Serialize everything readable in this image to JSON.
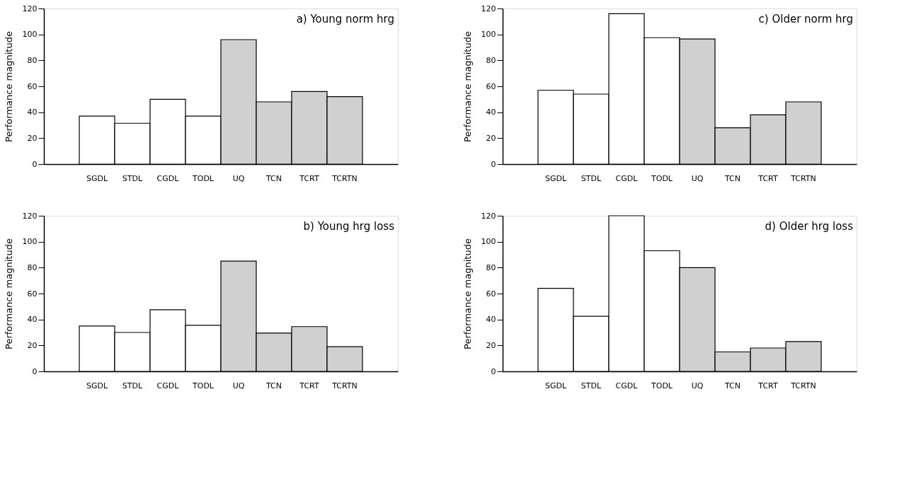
{
  "chart_data": [
    {
      "type": "bar",
      "title": "a) Young norm hrg",
      "ylabel": "Performance magnitude",
      "categories": [
        "SGDL",
        "STDL",
        "CGDL",
        "TODL",
        "UQ",
        "TCN",
        "TCRT",
        "TCRTN"
      ],
      "values": [
        37,
        31.5,
        50,
        37,
        96,
        48,
        56,
        52
      ],
      "colors": [
        "#ffffff",
        "#ffffff",
        "#ffffff",
        "#ffffff",
        "#d0d0d0",
        "#d0d0d0",
        "#d0d0d0",
        "#d0d0d0"
      ],
      "ylim": [
        0,
        120
      ],
      "yticks": [
        0,
        20,
        40,
        60,
        80,
        100,
        120
      ],
      "grid": false
    },
    {
      "type": "bar",
      "title": "c) Older norm hrg",
      "ylabel": "Performance magnitude",
      "categories": [
        "SGDL",
        "STDL",
        "CGDL",
        "TODL",
        "UQ",
        "TCN",
        "TCRT",
        "TCRTN"
      ],
      "values": [
        57,
        54,
        116,
        97.5,
        96.5,
        28,
        38,
        48
      ],
      "colors": [
        "#ffffff",
        "#ffffff",
        "#ffffff",
        "#ffffff",
        "#d0d0d0",
        "#d0d0d0",
        "#d0d0d0",
        "#d0d0d0"
      ],
      "ylim": [
        0,
        120
      ],
      "yticks": [
        0,
        20,
        40,
        60,
        80,
        100,
        120
      ],
      "grid": false
    },
    {
      "type": "bar",
      "title": "b) Young hrg loss",
      "ylabel": "Performance magnitude",
      "categories": [
        "SGDL",
        "STDL",
        "CGDL",
        "TODL",
        "UQ",
        "TCN",
        "TCRT",
        "TCRTN"
      ],
      "values": [
        35,
        30,
        47.5,
        35.5,
        85,
        29.5,
        34.5,
        19
      ],
      "colors": [
        "#ffffff",
        "#ffffff",
        "#ffffff",
        "#ffffff",
        "#d0d0d0",
        "#d0d0d0",
        "#d0d0d0",
        "#d0d0d0"
      ],
      "ylim": [
        0,
        120
      ],
      "yticks": [
        0,
        20,
        40,
        60,
        80,
        100,
        120
      ],
      "grid": false
    },
    {
      "type": "bar",
      "title": "d) Older hrg loss",
      "ylabel": "Performance magnitude",
      "categories": [
        "SGDL",
        "STDL",
        "CGDL",
        "TODL",
        "UQ",
        "TCN",
        "TCRT",
        "TCRTN"
      ],
      "values": [
        64,
        42.5,
        120,
        93,
        80,
        15,
        18,
        23
      ],
      "colors": [
        "#ffffff",
        "#ffffff",
        "#ffffff",
        "#ffffff",
        "#d0d0d0",
        "#d0d0d0",
        "#d0d0d0",
        "#d0d0d0"
      ],
      "ylim": [
        0,
        120
      ],
      "yticks": [
        0,
        20,
        40,
        60,
        80,
        100,
        120
      ],
      "grid": false
    }
  ]
}
